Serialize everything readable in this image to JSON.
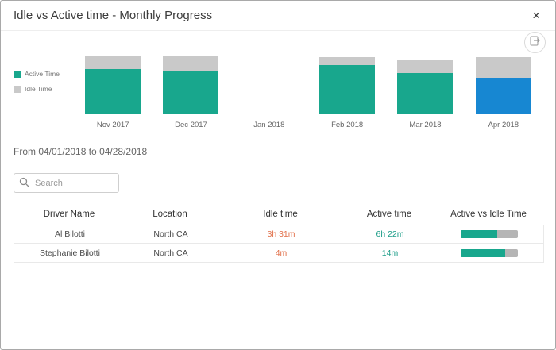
{
  "dialog": {
    "title": "Idle vs Active time - Monthly Progress",
    "close_glyph": "×"
  },
  "chart": {
    "legend": [
      {
        "label": "Active Time",
        "color": "#18a78d"
      },
      {
        "label": "Idle Time",
        "color": "#c9c9c9"
      }
    ]
  },
  "chart_data": {
    "type": "bar",
    "stacked": true,
    "categories": [
      "Nov 2017",
      "Dec 2017",
      "Jan 2018",
      "Feb 2018",
      "Mar 2018",
      "Apr 2018"
    ],
    "series": [
      {
        "name": "Active Time",
        "values": [
          57,
          55,
          0,
          62,
          52,
          46
        ]
      },
      {
        "name": "Idle Time",
        "values": [
          16,
          18,
          0,
          10,
          17,
          26
        ]
      }
    ],
    "colors": {
      "active": "#18a78d",
      "idle": "#c9c9c9"
    },
    "selected_category": "Apr 2018",
    "selected_color": "#1787d2",
    "ylim": [
      0,
      82
    ],
    "legend_position": "left",
    "grid": false
  },
  "filter": {
    "date_range": "From 04/01/2018 to 04/28/2018",
    "search_placeholder": "Search"
  },
  "table": {
    "columns": [
      "Driver Name",
      "Location",
      "Idle time",
      "Active time",
      "Active vs Idle Time"
    ],
    "rows": [
      {
        "driver": "Al Bilotti",
        "location": "North CA",
        "idle": "3h 31m",
        "active": "6h 22m",
        "active_pct": 64
      },
      {
        "driver": "Stephanie Bilotti",
        "location": "North CA",
        "idle": "4m",
        "active": "14m",
        "active_pct": 78
      }
    ]
  },
  "icons": {
    "export": "export-icon",
    "search": "search-icon",
    "close": "close-icon"
  }
}
